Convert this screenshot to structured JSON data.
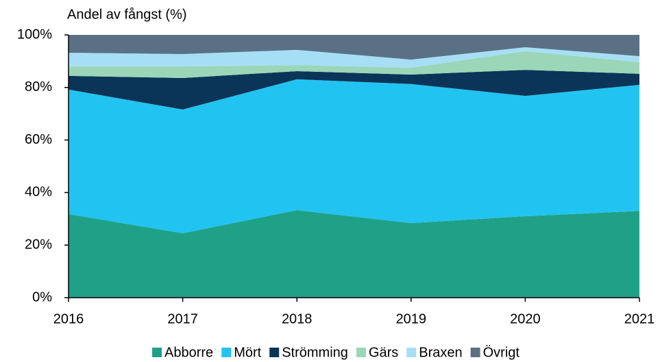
{
  "chart_data": {
    "type": "stacked_area",
    "y_label": "Andel av fångst (%)",
    "categories": [
      "2016",
      "2017",
      "2018",
      "2019",
      "2020",
      "2021"
    ],
    "series": [
      {
        "name": "Abborre",
        "color": "#1fa187",
        "values": [
          31.8,
          24.5,
          33.3,
          28.4,
          31,
          33
        ]
      },
      {
        "name": "Mört",
        "color": "#21c4f1",
        "values": [
          47.4,
          47.1,
          49.8,
          52.9,
          45.8,
          48
        ]
      },
      {
        "name": "Strömming",
        "color": "#0b3558",
        "values": [
          5.2,
          12,
          3.1,
          3.6,
          9.9,
          4.2
        ]
      },
      {
        "name": "Gärs",
        "color": "#9ad6b7",
        "values": [
          3.6,
          4.4,
          2.3,
          2.6,
          7.1,
          4.4
        ]
      },
      {
        "name": "Braxen",
        "color": "#a6dff5",
        "values": [
          5.2,
          4.7,
          5.8,
          3.1,
          1.5,
          2.3
        ]
      },
      {
        "name": "Övrigt",
        "color": "#5a7185",
        "values": [
          6.8,
          7.3,
          5.7,
          9.4,
          4.7,
          8.1
        ]
      }
    ],
    "ylim": [
      0,
      100
    ],
    "yticks": [
      {
        "value": 0,
        "label": "0%"
      },
      {
        "value": 20,
        "label": "20%"
      },
      {
        "value": 40,
        "label": "40%"
      },
      {
        "value": 60,
        "label": "60%"
      },
      {
        "value": 80,
        "label": "80%"
      },
      {
        "value": 100,
        "label": "100%"
      }
    ],
    "legend": "bottom"
  }
}
